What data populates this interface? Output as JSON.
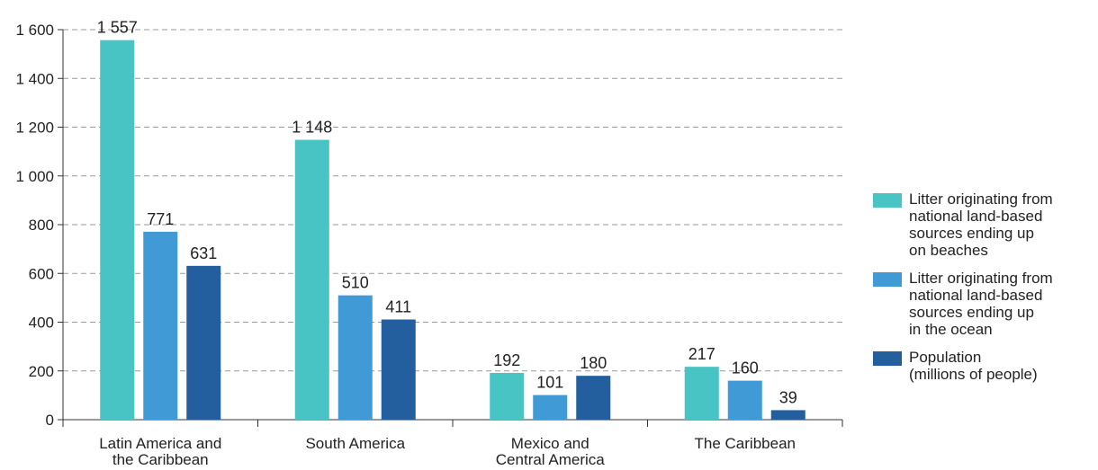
{
  "chart_data": {
    "type": "bar",
    "categories": [
      [
        "Latin America and",
        "the Caribbean"
      ],
      [
        "South America"
      ],
      [
        "Mexico and",
        "Central America"
      ],
      [
        "The Caribbean"
      ]
    ],
    "series": [
      {
        "name": "Litter originating from\nnational land-based\nsources ending up\non beaches",
        "color": "#48C4C4",
        "values": [
          1557,
          1148,
          192,
          217
        ],
        "labels": [
          "1 557",
          "1 148",
          "192",
          "217"
        ]
      },
      {
        "name": "Litter originating from\nnational land-based\nsources ending up\nin the ocean",
        "color": "#3F9AD6",
        "values": [
          771,
          510,
          101,
          160
        ],
        "labels": [
          "771",
          "510",
          "101",
          "160"
        ]
      },
      {
        "name": "Population\n(millions of people)",
        "color": "#235E9E",
        "values": [
          631,
          411,
          180,
          39
        ],
        "labels": [
          "631",
          "411",
          "180",
          "39"
        ]
      }
    ],
    "yticks": [
      0,
      200,
      400,
      600,
      800,
      1000,
      1200,
      1400,
      1600
    ],
    "ytick_labels": [
      "0",
      "200",
      "400",
      "600",
      "800",
      "1 000",
      "1 200",
      "1 400",
      "1 600"
    ],
    "ylim": [
      0,
      1600
    ],
    "grid": true,
    "legend_position": "right"
  }
}
